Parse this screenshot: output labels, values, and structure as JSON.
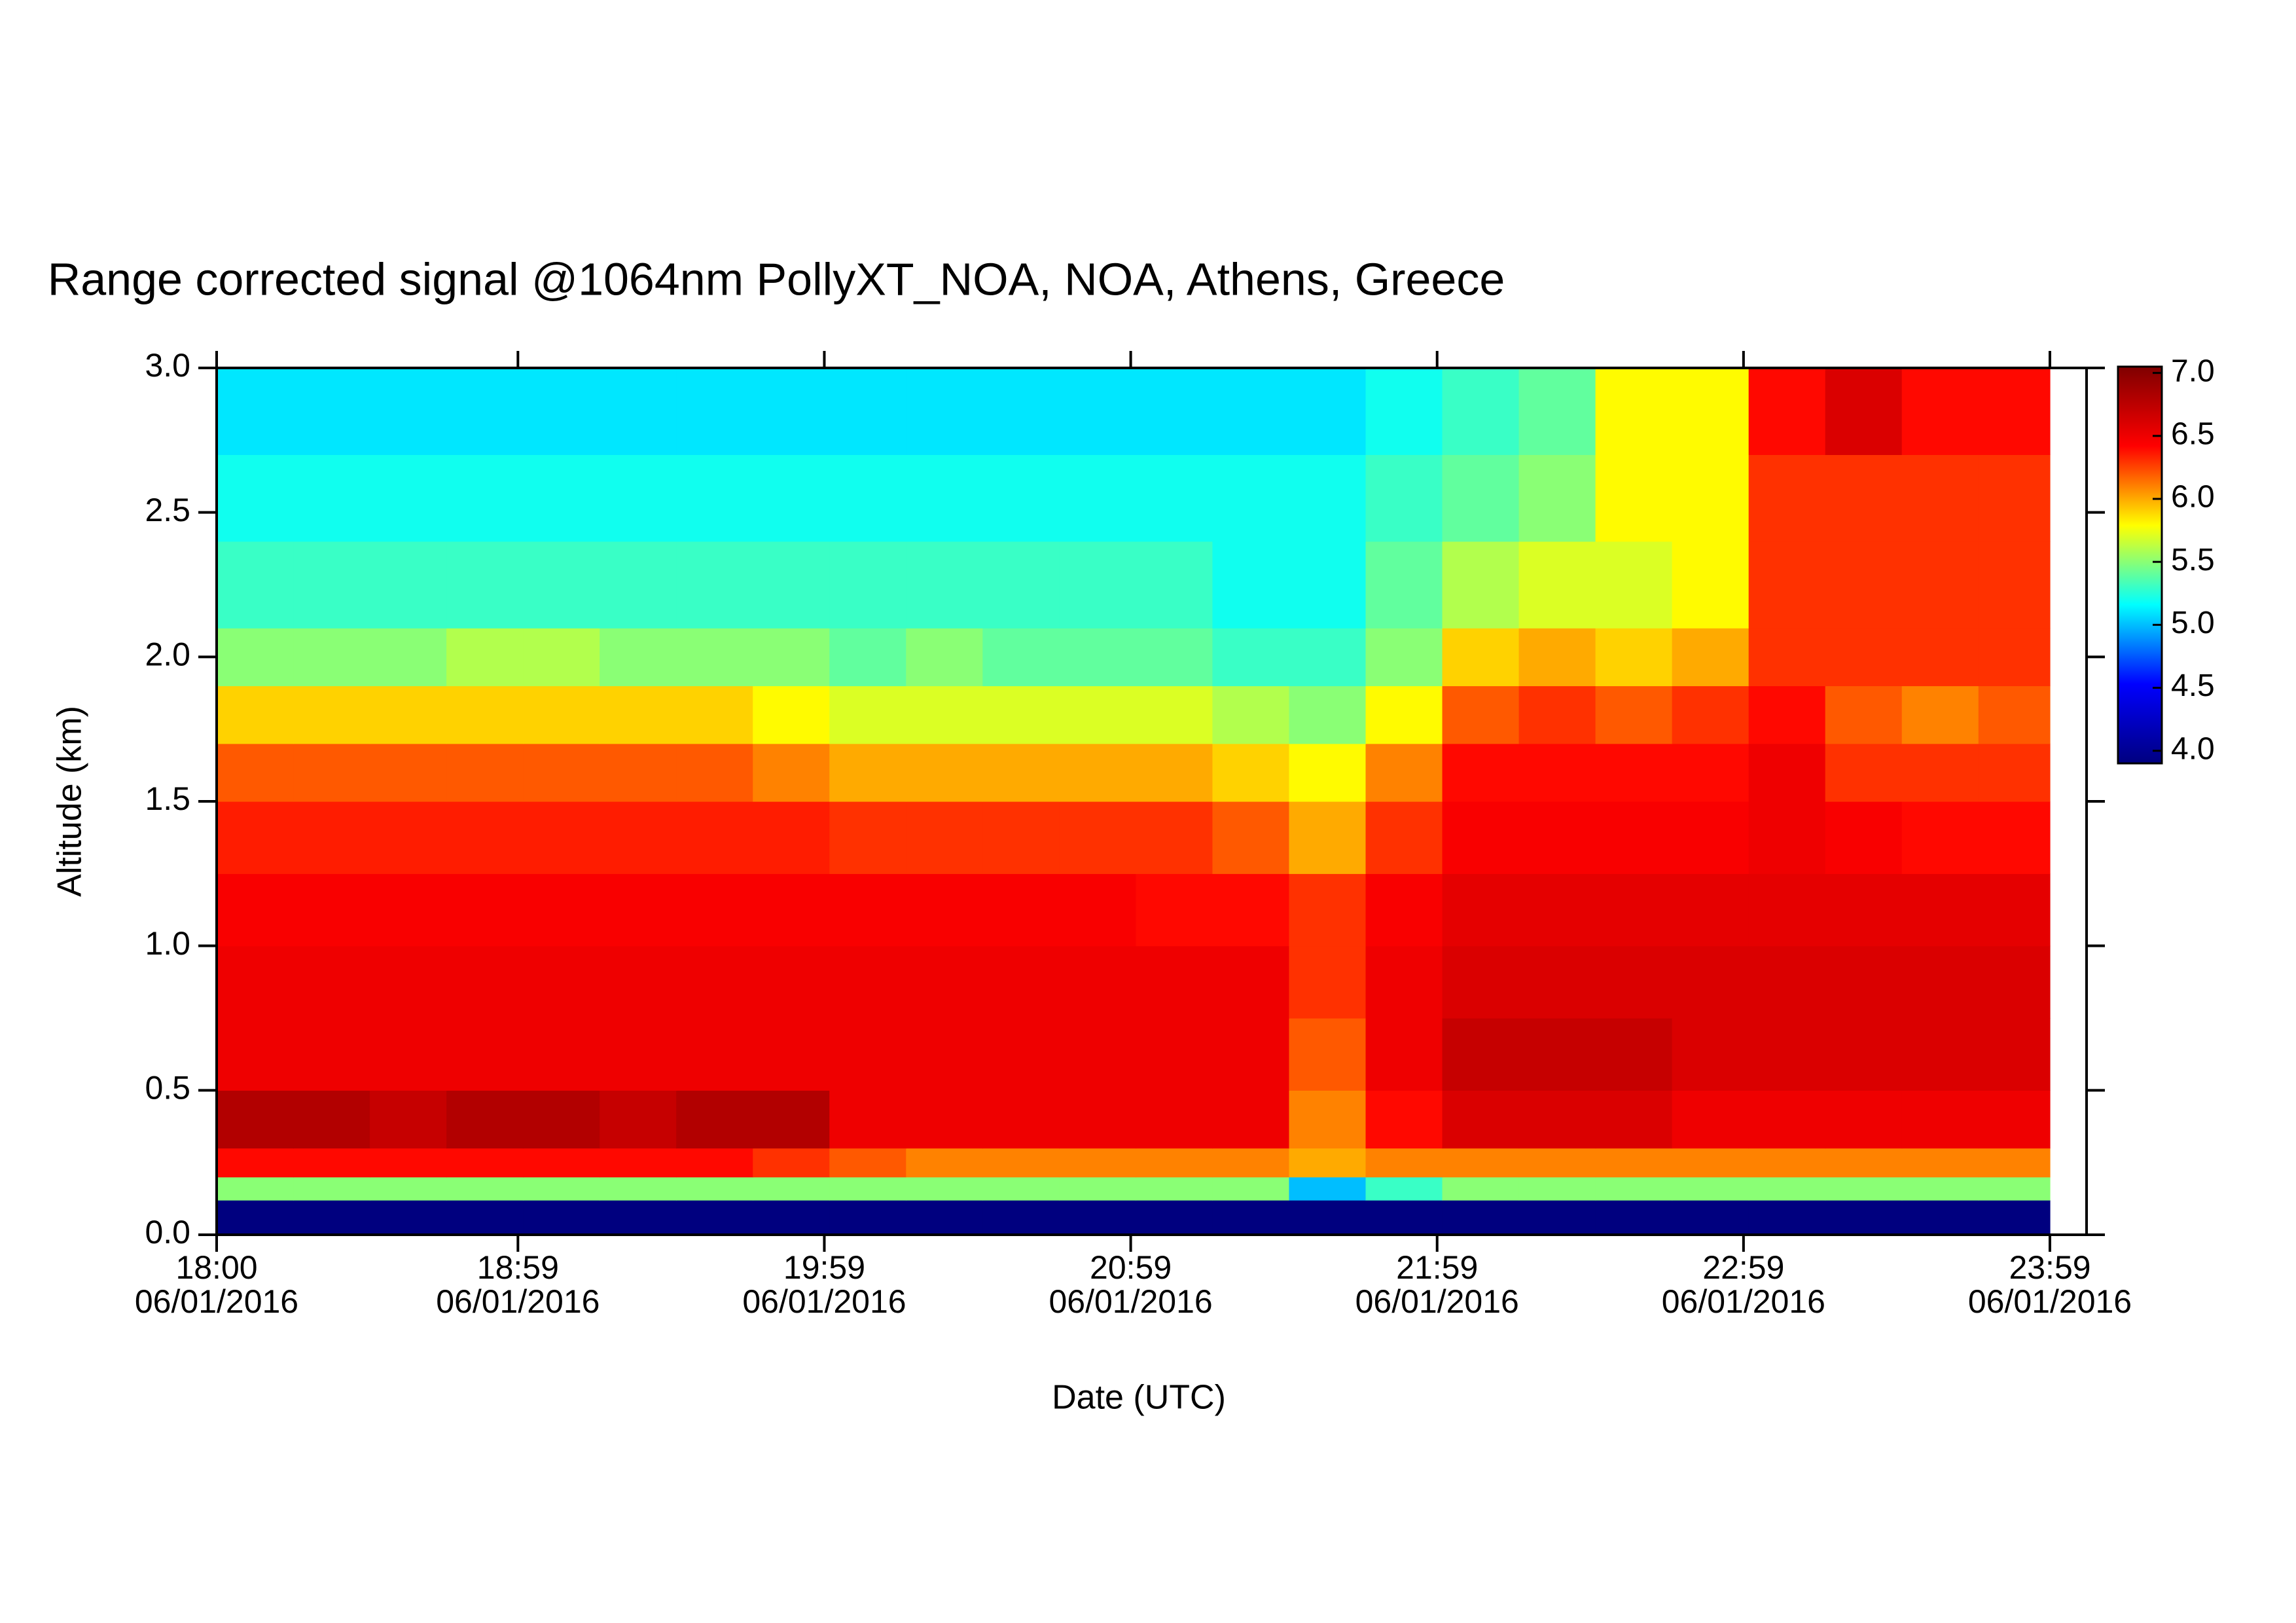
{
  "chart_data": {
    "type": "heatmap",
    "title": "Range corrected signal @1064nm  PollyXT_NOA, NOA, Athens, Greece",
    "x_label": "Date (UTC)",
    "y_label": "Altitude (km)",
    "xlim": [
      0,
      359
    ],
    "xticks": [
      {
        "value": 0,
        "label": "18:00\n06/01/2016"
      },
      {
        "value": 59,
        "label": "18:59\n06/01/2016"
      },
      {
        "value": 119,
        "label": "19:59\n06/01/2016"
      },
      {
        "value": 179,
        "label": "20:59\n06/01/2016"
      },
      {
        "value": 239,
        "label": "21:59\n06/01/2016"
      },
      {
        "value": 299,
        "label": "22:59\n06/01/2016"
      },
      {
        "value": 359,
        "label": "23:59\n06/01/2016"
      }
    ],
    "ylim": [
      0,
      3
    ],
    "yticks": [
      {
        "value": 0,
        "label": "0.0"
      },
      0.5,
      {
        "value": 1,
        "label": "1.0"
      },
      1.5,
      {
        "value": 2,
        "label": "2.0"
      },
      2.5,
      {
        "value": 3,
        "label": "3.0"
      }
    ],
    "x_edges": [
      0,
      15,
      30,
      45,
      60,
      75,
      90,
      105,
      120,
      135,
      150,
      165,
      180,
      195,
      210,
      225,
      240,
      255,
      270,
      285,
      300,
      315,
      330,
      345,
      359
    ],
    "y_edges": [
      0,
      0.12,
      0.2,
      0.3,
      0.5,
      0.75,
      1.0,
      1.25,
      1.5,
      1.7,
      1.9,
      2.1,
      2.4,
      2.7,
      3.0
    ],
    "z": [
      [
        3.9,
        3.9,
        3.9,
        3.9,
        3.9,
        3.9,
        3.9,
        3.9,
        3.9,
        3.9,
        3.9,
        3.9,
        3.9,
        3.9,
        3.9,
        3.9,
        3.9,
        3.9,
        3.9,
        3.9,
        3.9,
        3.9,
        3.9,
        3.9
      ],
      [
        5.5,
        5.5,
        5.5,
        5.5,
        5.5,
        5.5,
        5.5,
        5.5,
        5.5,
        5.5,
        5.5,
        5.5,
        5.5,
        5.5,
        5.0,
        5.3,
        5.5,
        5.5,
        5.5,
        5.5,
        5.5,
        5.5,
        5.5,
        5.5
      ],
      [
        6.4,
        6.4,
        6.4,
        6.4,
        6.4,
        6.4,
        6.4,
        6.3,
        6.2,
        6.1,
        6.1,
        6.1,
        6.1,
        6.1,
        6.0,
        6.1,
        6.1,
        6.1,
        6.1,
        6.1,
        6.1,
        6.1,
        6.1,
        6.1
      ],
      [
        6.8,
        6.8,
        6.7,
        6.8,
        6.8,
        6.7,
        6.8,
        6.8,
        6.5,
        6.5,
        6.5,
        6.5,
        6.5,
        6.5,
        6.1,
        6.4,
        6.6,
        6.6,
        6.6,
        6.5,
        6.5,
        6.5,
        6.5,
        6.5
      ],
      [
        6.5,
        6.5,
        6.5,
        6.5,
        6.5,
        6.5,
        6.5,
        6.5,
        6.5,
        6.5,
        6.5,
        6.5,
        6.5,
        6.5,
        6.2,
        6.5,
        6.7,
        6.7,
        6.7,
        6.6,
        6.6,
        6.6,
        6.6,
        6.6
      ],
      [
        6.5,
        6.5,
        6.5,
        6.5,
        6.5,
        6.5,
        6.5,
        6.5,
        6.5,
        6.5,
        6.5,
        6.5,
        6.5,
        6.5,
        6.3,
        6.5,
        6.6,
        6.6,
        6.6,
        6.6,
        6.6,
        6.6,
        6.6,
        6.6
      ],
      [
        6.45,
        6.45,
        6.45,
        6.45,
        6.45,
        6.45,
        6.45,
        6.45,
        6.45,
        6.45,
        6.45,
        6.45,
        6.4,
        6.4,
        6.3,
        6.45,
        6.55,
        6.55,
        6.55,
        6.55,
        6.55,
        6.55,
        6.55,
        6.55
      ],
      [
        6.35,
        6.35,
        6.35,
        6.35,
        6.35,
        6.35,
        6.35,
        6.35,
        6.3,
        6.3,
        6.3,
        6.3,
        6.3,
        6.2,
        6.0,
        6.3,
        6.45,
        6.45,
        6.45,
        6.45,
        6.5,
        6.45,
        6.4,
        6.4
      ],
      [
        6.2,
        6.2,
        6.2,
        6.2,
        6.2,
        6.2,
        6.2,
        6.1,
        6.0,
        6.0,
        6.0,
        6.0,
        6.0,
        5.9,
        5.8,
        6.1,
        6.4,
        6.4,
        6.4,
        6.4,
        6.5,
        6.3,
        6.3,
        6.3
      ],
      [
        5.9,
        5.9,
        5.9,
        5.9,
        5.9,
        5.9,
        5.9,
        5.8,
        5.7,
        5.7,
        5.7,
        5.7,
        5.7,
        5.6,
        5.5,
        5.8,
        6.2,
        6.3,
        6.2,
        6.3,
        6.4,
        6.2,
        6.1,
        6.2
      ],
      [
        5.5,
        5.5,
        5.5,
        5.6,
        5.6,
        5.5,
        5.5,
        5.5,
        5.4,
        5.5,
        5.4,
        5.4,
        5.4,
        5.3,
        5.3,
        5.5,
        5.9,
        6.0,
        5.9,
        6.0,
        6.3,
        6.3,
        6.3,
        6.3
      ],
      [
        5.3,
        5.3,
        5.3,
        5.3,
        5.3,
        5.3,
        5.3,
        5.3,
        5.3,
        5.3,
        5.3,
        5.3,
        5.3,
        5.2,
        5.2,
        5.4,
        5.6,
        5.7,
        5.7,
        5.8,
        6.3,
        6.3,
        6.3,
        6.3
      ],
      [
        5.2,
        5.2,
        5.2,
        5.2,
        5.2,
        5.2,
        5.2,
        5.2,
        5.2,
        5.2,
        5.2,
        5.2,
        5.2,
        5.2,
        5.2,
        5.3,
        5.4,
        5.5,
        5.8,
        5.8,
        6.3,
        6.3,
        6.3,
        6.3
      ],
      [
        5.1,
        5.1,
        5.1,
        5.1,
        5.1,
        5.1,
        5.1,
        5.1,
        5.1,
        5.1,
        5.1,
        5.1,
        5.1,
        5.1,
        5.1,
        5.2,
        5.3,
        5.4,
        5.8,
        5.8,
        6.4,
        6.6,
        6.4,
        6.4
      ]
    ],
    "colors": [
      "#00007f",
      "#0000ff",
      "#00ffff",
      "#ffff00",
      "#ff0000",
      "#7f0000"
    ],
    "zlim": [
      3.9,
      7.05
    ],
    "zticks": [
      {
        "value": 4,
        "label": "4.0"
      },
      4.5,
      {
        "value": 5,
        "label": "5.0"
      },
      5.5,
      {
        "value": 6,
        "label": "6.0"
      },
      6.5,
      {
        "value": 7,
        "label": "7.0"
      }
    ]
  }
}
